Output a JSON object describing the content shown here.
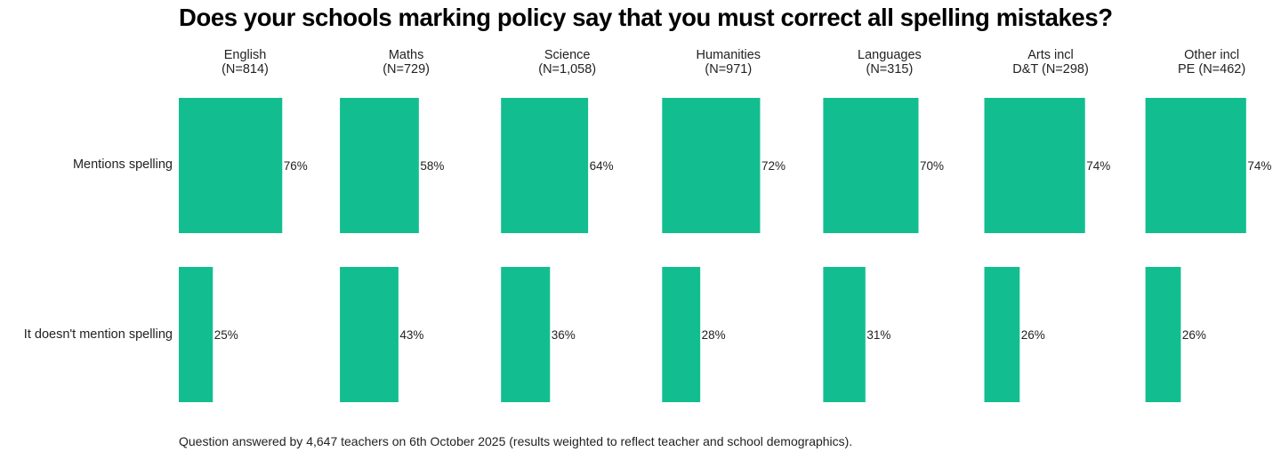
{
  "chart_data": {
    "type": "bar",
    "orientation": "horizontal",
    "layout": "small-multiples",
    "title": "Does your schools marking policy say that you must correct all spelling mistakes?",
    "panels": [
      {
        "name": "English",
        "n_label": "(N=814)"
      },
      {
        "name": "Maths",
        "n_label": "(N=729)"
      },
      {
        "name": "Science",
        "n_label": "(N=1,058)"
      },
      {
        "name": "Humanities",
        "n_label": "(N=971)"
      },
      {
        "name": "Languages",
        "n_label": "(N=315)"
      },
      {
        "name": "Arts incl",
        "n_label": "D&T (N=298)"
      },
      {
        "name": "Other incl",
        "n_label": "PE (N=462)"
      }
    ],
    "categories": [
      "Mentions spelling",
      "It doesn't mention spelling"
    ],
    "series": [
      {
        "name": "Mentions spelling",
        "values": [
          76,
          58,
          64,
          72,
          70,
          74,
          74
        ],
        "labels": [
          "76%",
          "58%",
          "64%",
          "72%",
          "70%",
          "74%",
          "74%"
        ]
      },
      {
        "name": "It doesn't mention spelling",
        "values": [
          25,
          43,
          36,
          28,
          31,
          26,
          26
        ],
        "labels": [
          "25%",
          "43%",
          "36%",
          "28%",
          "31%",
          "26%",
          "26%"
        ]
      }
    ],
    "unit": "%",
    "xlim": [
      0,
      100
    ],
    "grid": false,
    "legend": "none",
    "bar_color": "#12BE8F",
    "footnote": "Question answered by 4,647 teachers on 6th October 2025 (results weighted to reflect teacher and school demographics)."
  }
}
